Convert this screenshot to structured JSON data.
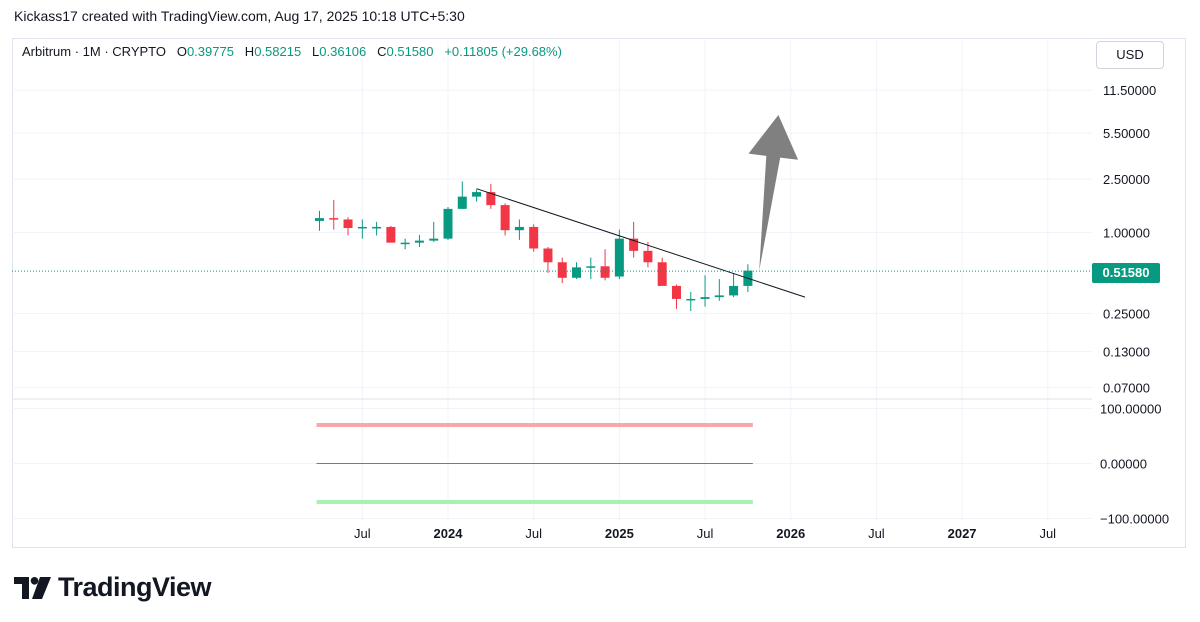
{
  "header": {
    "attribution": "Kickass17 created with TradingView.com, Aug 17, 2025 10:18 UTC+5:30"
  },
  "legend": {
    "symbol": "Arbitrum · 1M · CRYPTO",
    "open_label": "O",
    "open": "0.39775",
    "high_label": "H",
    "high": "0.58215",
    "low_label": "L",
    "low": "0.36106",
    "close_label": "C",
    "close": "0.51580",
    "change": "+0.11805 (+29.68%)"
  },
  "currency": "USD",
  "last_price": "0.51580",
  "brand": {
    "name": "TradingView"
  },
  "colors": {
    "up": "#089981",
    "down": "#f23645",
    "trendline": "#131722",
    "arrow": "#808080",
    "osc_upper": "#f7a9a8",
    "osc_lower": "#a9f0b2",
    "osc_mid": "#787b86"
  },
  "chart_data": {
    "type": "candlestick",
    "scale": "log",
    "price_ticks": [
      "11.50000",
      "5.50000",
      "2.50000",
      "1.00000",
      "0.25000",
      "0.13000",
      "0.07000"
    ],
    "x_ticks": [
      "Jul",
      "2024",
      "Jul",
      "2025",
      "Jul",
      "2026",
      "Jul",
      "2027",
      "Jul"
    ],
    "candles": [
      {
        "date": "2023-04",
        "open": 1.22,
        "high": 1.45,
        "low": 1.03,
        "close": 1.28
      },
      {
        "date": "2023-05",
        "open": 1.28,
        "high": 1.75,
        "low": 1.05,
        "close": 1.25
      },
      {
        "date": "2023-06",
        "open": 1.25,
        "high": 1.3,
        "low": 0.95,
        "close": 1.08
      },
      {
        "date": "2023-07",
        "open": 1.08,
        "high": 1.25,
        "low": 0.9,
        "close": 1.1
      },
      {
        "date": "2023-08",
        "open": 1.1,
        "high": 1.2,
        "low": 0.95,
        "close": 1.1
      },
      {
        "date": "2023-09",
        "open": 1.1,
        "high": 1.12,
        "low": 0.85,
        "close": 0.84
      },
      {
        "date": "2023-10",
        "open": 0.84,
        "high": 0.9,
        "low": 0.75,
        "close": 0.84
      },
      {
        "date": "2023-11",
        "open": 0.84,
        "high": 0.96,
        "low": 0.78,
        "close": 0.87
      },
      {
        "date": "2023-12",
        "open": 0.87,
        "high": 1.2,
        "low": 0.85,
        "close": 0.9
      },
      {
        "date": "2024-01",
        "open": 0.9,
        "high": 1.55,
        "low": 0.88,
        "close": 1.5
      },
      {
        "date": "2024-02",
        "open": 1.5,
        "high": 2.4,
        "low": 1.5,
        "close": 1.85
      },
      {
        "date": "2024-03",
        "open": 1.85,
        "high": 2.1,
        "low": 1.7,
        "close": 2.0
      },
      {
        "date": "2024-04",
        "open": 2.0,
        "high": 2.3,
        "low": 1.5,
        "close": 1.6
      },
      {
        "date": "2024-05",
        "open": 1.6,
        "high": 1.65,
        "low": 0.95,
        "close": 1.04
      },
      {
        "date": "2024-06",
        "open": 1.04,
        "high": 1.25,
        "low": 0.88,
        "close": 1.1
      },
      {
        "date": "2024-07",
        "open": 1.1,
        "high": 1.15,
        "low": 0.72,
        "close": 0.76
      },
      {
        "date": "2024-08",
        "open": 0.76,
        "high": 0.78,
        "low": 0.5,
        "close": 0.6
      },
      {
        "date": "2024-09",
        "open": 0.6,
        "high": 0.65,
        "low": 0.42,
        "close": 0.46
      },
      {
        "date": "2024-10",
        "open": 0.46,
        "high": 0.6,
        "low": 0.45,
        "close": 0.55
      },
      {
        "date": "2024-11",
        "open": 0.55,
        "high": 0.65,
        "low": 0.45,
        "close": 0.56
      },
      {
        "date": "2024-12",
        "open": 0.56,
        "high": 0.75,
        "low": 0.44,
        "close": 0.46
      },
      {
        "date": "2025-01",
        "open": 0.47,
        "high": 1.05,
        "low": 0.45,
        "close": 0.9
      },
      {
        "date": "2025-02",
        "open": 0.9,
        "high": 1.2,
        "low": 0.65,
        "close": 0.73
      },
      {
        "date": "2025-03",
        "open": 0.73,
        "high": 0.85,
        "low": 0.55,
        "close": 0.6
      },
      {
        "date": "2025-04",
        "open": 0.6,
        "high": 0.65,
        "low": 0.42,
        "close": 0.4
      },
      {
        "date": "2025-05",
        "open": 0.4,
        "high": 0.41,
        "low": 0.27,
        "close": 0.32
      },
      {
        "date": "2025-06",
        "open": 0.32,
        "high": 0.36,
        "low": 0.26,
        "close": 0.32
      },
      {
        "date": "2025-07",
        "open": 0.32,
        "high": 0.48,
        "low": 0.28,
        "close": 0.33
      },
      {
        "date": "2025-08",
        "open": 0.33,
        "high": 0.45,
        "low": 0.31,
        "close": 0.34
      },
      {
        "date": "2025-09",
        "open": 0.34,
        "high": 0.5,
        "low": 0.33,
        "close": 0.4
      },
      {
        "date": "2025-10",
        "open": 0.4,
        "high": 0.58,
        "low": 0.36,
        "close": 0.52
      }
    ],
    "trendline": {
      "from": {
        "date": "2024-03",
        "price": 2.12
      },
      "to": {
        "date": "2026-02",
        "price": 0.33
      }
    },
    "arrow": {
      "from": {
        "date": "2025-11",
        "price": 0.52
      },
      "to": {
        "date": "2025-12",
        "price": 7.5
      }
    },
    "oscillator": {
      "ticks": [
        "100.00000",
        "0.00000",
        "−100.00000"
      ],
      "upper": 100,
      "lower": -100,
      "mid": 0,
      "upper_band": 70,
      "lower_band": -70,
      "range": {
        "from": "2023-04",
        "to": "2025-10"
      }
    }
  }
}
